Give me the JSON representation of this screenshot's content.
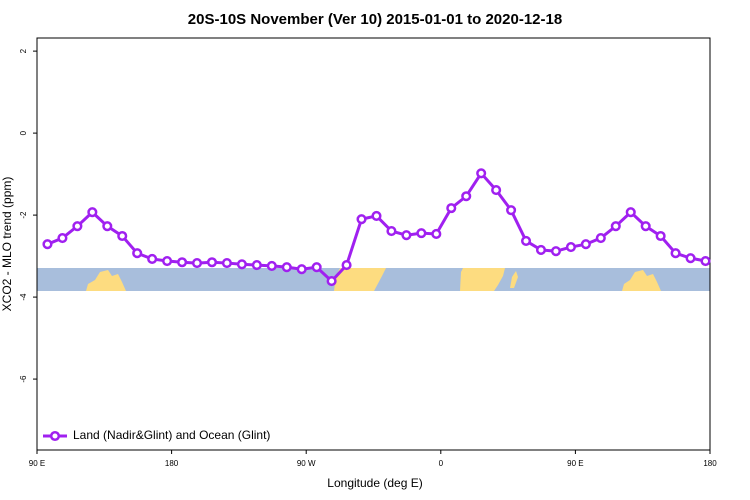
{
  "chart_data": {
    "type": "line",
    "title": "20S-10S November (Ver 10)   2015-01-01 to 2020-12-18",
    "xlabel": "Longitude (deg E)",
    "ylabel": "XCO2 - MLO trend (ppm)",
    "x": [
      97,
      107,
      117,
      127,
      137,
      147,
      157,
      167,
      177,
      187,
      197,
      207,
      217,
      227,
      237,
      247,
      257,
      267,
      277,
      287,
      297,
      307,
      317,
      327,
      337,
      347,
      357,
      367,
      377,
      387,
      397,
      407,
      417,
      427,
      437,
      447,
      457,
      467,
      477,
      487,
      497,
      507,
      517,
      527,
      537
    ],
    "series": [
      {
        "name": "Land (Nadir&Glint) and Ocean (Glint)",
        "color": "#a020f0",
        "values": [
          -2.71,
          -2.56,
          -2.27,
          -1.93,
          -2.27,
          -2.51,
          -2.93,
          -3.07,
          -3.12,
          -3.15,
          -3.17,
          -3.15,
          -3.17,
          -3.2,
          -3.22,
          -3.24,
          -3.27,
          -3.32,
          -3.27,
          -3.61,
          -3.22,
          -2.1,
          -2.02,
          -2.39,
          -2.49,
          -2.44,
          -2.46,
          -1.83,
          -1.54,
          -0.98,
          -1.39,
          -1.88,
          -2.63,
          -2.85,
          -2.88,
          -2.78,
          -2.71,
          -2.56,
          -2.27,
          -1.93,
          -2.27,
          -2.51,
          -2.93,
          -3.05,
          -3.12
        ]
      }
    ],
    "xlim": [
      90,
      540
    ],
    "xticks": [
      {
        "value": 90,
        "label": "90 E"
      },
      180,
      {
        "value": 270,
        "label": "90 W"
      },
      {
        "value": 360,
        "label": "0"
      },
      {
        "value": 450,
        "label": "90 E"
      },
      {
        "value": 540,
        "label": "180"
      }
    ],
    "ylim": [
      -7.73,
      2.32
    ],
    "yticks": [
      2,
      0,
      -2,
      -4,
      -6
    ],
    "legend": "bottom-left"
  }
}
